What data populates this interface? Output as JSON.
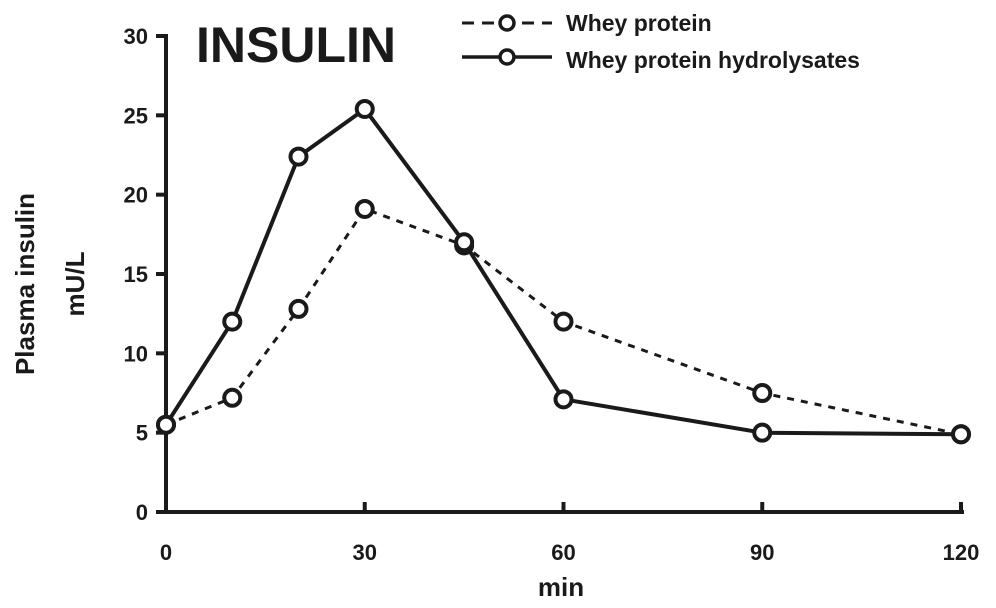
{
  "chart_data": {
    "type": "line",
    "title": "INSULIN",
    "xlabel": "min",
    "ylabel_line1": "Plasma insulin",
    "ylabel_line2": "mU/L",
    "xlim": [
      0,
      120
    ],
    "ylim": [
      0,
      30
    ],
    "x_ticks": [
      0,
      30,
      60,
      90,
      120
    ],
    "y_ticks": [
      0,
      5,
      10,
      15,
      20,
      25,
      30
    ],
    "grid": false,
    "legend_position": "top-right",
    "series": [
      {
        "name": "Whey protein",
        "style": "dashed",
        "x": [
          0,
          10,
          20,
          30,
          45,
          60,
          90,
          120
        ],
        "values": [
          5.5,
          7.2,
          12.8,
          19.1,
          16.8,
          12.0,
          7.5,
          4.9
        ]
      },
      {
        "name": "Whey protein hydrolysates",
        "style": "solid",
        "x": [
          0,
          10,
          20,
          30,
          45,
          60,
          90,
          120
        ],
        "values": [
          5.5,
          12.0,
          22.4,
          25.4,
          17.0,
          7.1,
          5.0,
          4.9
        ]
      }
    ],
    "colors": {
      "ink": "#1a1a1a",
      "background": "#ffffff"
    }
  }
}
